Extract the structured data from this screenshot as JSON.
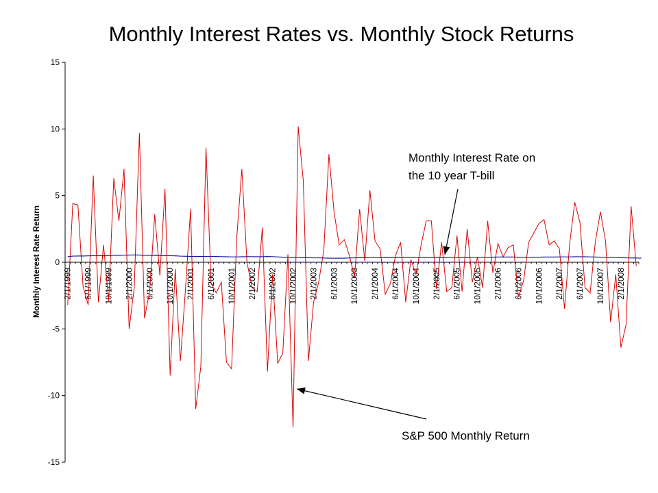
{
  "chart_data": {
    "type": "line",
    "title": "Monthly Interest Rates vs. Monthly Stock Returns",
    "ylabel": "Monthly Interest Rate Return",
    "xlabel": "",
    "ylim": [
      -15,
      15
    ],
    "y_ticks": [
      15,
      10,
      5,
      0,
      -5,
      -10,
      -15
    ],
    "grid": false,
    "legend": "none",
    "x_tick_labels": [
      "2/1/1999",
      "6/1/1999",
      "10/1/1999",
      "2/1/2000",
      "6/1/2000",
      "10/1/2000",
      "2/1/2001",
      "6/1/2001",
      "10/1/2001",
      "2/1/2002",
      "6/1/2002",
      "10/1/2002",
      "2/1/2003",
      "6/1/2003",
      "10/1/2003",
      "2/1/2004",
      "6/1/2004",
      "10/1/2004",
      "2/1/2005",
      "6/1/2005",
      "10/1/2005",
      "2/1/2006",
      "6/1/2006",
      "10/1/2006",
      "2/1/2007",
      "6/1/2007",
      "10/1/2007",
      "2/1/2008"
    ],
    "x_start": "2/1/1999",
    "series": [
      {
        "color": "#dd0000",
        "values": [
          -3.2,
          4.4,
          4.3,
          -1.8,
          -3.2,
          6.5,
          -3.0,
          1.3,
          -2.9,
          6.3,
          3.1,
          7.0,
          -5.0,
          -1.9,
          9.7,
          -4.2,
          -2.2,
          3.6,
          -1.0,
          5.5,
          -8.5,
          -0.5,
          -7.4,
          -2.0,
          4.0,
          -11.0,
          -7.8,
          8.6,
          -1.6,
          -2.3,
          -1.5,
          -7.5,
          -8.0,
          1.8,
          7.0,
          0.0,
          -1.9,
          -2.2,
          2.6,
          -8.2,
          -0.9,
          -7.6,
          -6.8,
          0.6,
          -12.4,
          10.2,
          6.1,
          -7.4,
          -3.0,
          -1.5,
          0.9,
          8.1,
          3.8,
          1.3,
          1.7,
          0.5,
          -1.1,
          4.0,
          0.1,
          5.4,
          1.6,
          1.0,
          -2.4,
          -1.6,
          0.5,
          1.5,
          -3.0,
          0.2,
          -0.9,
          1.3,
          3.1,
          3.1,
          -2.0,
          1.5,
          -2.2,
          -1.9,
          2.0,
          -2.2,
          2.5,
          -1.5,
          0.4,
          -1.9,
          3.1,
          -0.8,
          1.4,
          0.4,
          1.1,
          1.3,
          -2.6,
          -1.4,
          1.5,
          2.2,
          2.9,
          3.2,
          1.3,
          1.6,
          1.0,
          -3.5,
          1.4,
          4.5,
          3.0,
          -1.9,
          -2.3,
          1.5,
          3.8,
          1.6,
          -4.5,
          -0.9,
          -6.4,
          -4.7,
          4.2,
          -0.3
        ]
      },
      {
        "color": "#1a1aa0",
        "values": [
          0.42,
          0.46,
          0.47,
          0.47,
          0.48,
          0.49,
          0.5,
          0.5,
          0.5,
          0.51,
          0.52,
          0.53,
          0.54,
          0.55,
          0.54,
          0.52,
          0.51,
          0.52,
          0.5,
          0.5,
          0.49,
          0.48,
          0.46,
          0.45,
          0.44,
          0.43,
          0.43,
          0.44,
          0.44,
          0.43,
          0.42,
          0.41,
          0.4,
          0.4,
          0.41,
          0.42,
          0.42,
          0.41,
          0.42,
          0.43,
          0.42,
          0.4,
          0.38,
          0.37,
          0.36,
          0.35,
          0.34,
          0.34,
          0.33,
          0.33,
          0.32,
          0.31,
          0.3,
          0.3,
          0.31,
          0.32,
          0.33,
          0.34,
          0.34,
          0.35,
          0.35,
          0.35,
          0.36,
          0.35,
          0.36,
          0.36,
          0.36,
          0.35,
          0.35,
          0.35,
          0.36,
          0.36,
          0.36,
          0.36,
          0.36,
          0.37,
          0.37,
          0.36,
          0.36,
          0.37,
          0.37,
          0.38,
          0.38,
          0.38,
          0.39,
          0.39,
          0.39,
          0.39,
          0.38,
          0.38,
          0.38,
          0.38,
          0.38,
          0.39,
          0.39,
          0.39,
          0.4,
          0.4,
          0.4,
          0.41,
          0.41,
          0.41,
          0.4,
          0.39,
          0.38,
          0.37,
          0.36,
          0.35,
          0.34,
          0.33,
          0.32,
          0.32,
          0.31
        ]
      }
    ],
    "annotations": [
      {
        "line1": "Monthly Interest Rate on",
        "line2": "the 10 year T-bill"
      },
      {
        "text": "S&P 500 Monthly Return"
      }
    ]
  }
}
